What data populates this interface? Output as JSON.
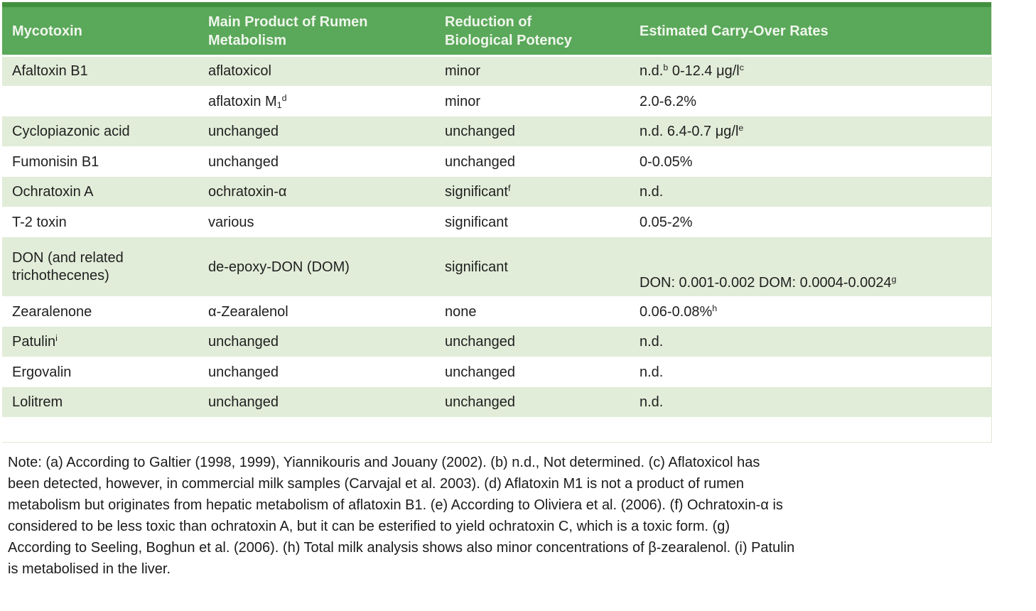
{
  "colors": {
    "header_bg": "#5aa85a",
    "header_top_border": "#41903f",
    "row_green": "#e2edd9",
    "header_text": "#eff6ec",
    "body_text": "#1f1f1f"
  },
  "table": {
    "columns": [
      {
        "label": "Mycotoxin"
      },
      {
        "label": "Main Product of Rumen\nMetabolism"
      },
      {
        "label": "Reduction of\nBiological Potency"
      },
      {
        "label": "Estimated Carry-Over Rates"
      }
    ],
    "rows": [
      {
        "shade": "green",
        "cells": [
          "Afaltoxin B1",
          "aflatoxicol",
          "minor",
          "n.d.^{b} 0-12.4 μg/l^{c}"
        ]
      },
      {
        "shade": "white",
        "cells": [
          "",
          "aflatoxin M_{1}^{d}",
          "minor",
          "2.0-6.2%"
        ]
      },
      {
        "shade": "green",
        "cells": [
          "Cyclopiazonic acid",
          "unchanged",
          "unchanged",
          "n.d. 6.4-0.7 μg/l^{e}"
        ]
      },
      {
        "shade": "white",
        "cells": [
          "Fumonisin B1",
          "unchanged",
          "unchanged",
          "0-0.05%"
        ]
      },
      {
        "shade": "green",
        "cells": [
          "Ochratoxin A",
          "ochratoxin-α",
          "significant^{f}",
          "n.d."
        ]
      },
      {
        "shade": "white",
        "cells": [
          "T-2 toxin",
          "various",
          "significant",
          "0.05-2%"
        ]
      },
      {
        "shade": "green",
        "tall": true,
        "cells": [
          "DON (and related trichothecenes)",
          "de-epoxy-DON (DOM)",
          "significant",
          "DON: 0.001-0.002 DOM: 0.0004-0.0024^{g}"
        ]
      },
      {
        "shade": "white",
        "cells": [
          "Zearalenone",
          "α-Zearalenol",
          "none",
          "0.06-0.08%^{h}"
        ]
      },
      {
        "shade": "green",
        "cells": [
          "Patulin^{i}",
          "unchanged",
          "unchanged",
          "n.d."
        ]
      },
      {
        "shade": "white",
        "cells": [
          "Ergovalin",
          "unchanged",
          "unchanged",
          "n.d."
        ]
      },
      {
        "shade": "green",
        "cells": [
          "Lolitrem",
          "unchanged",
          "unchanged",
          "n.d."
        ]
      },
      {
        "shade": "white",
        "empty": true,
        "cells": [
          "",
          "",
          "",
          ""
        ]
      }
    ]
  },
  "note_lines": [
    "Note: (a) According to Galtier (1998, 1999), Yiannikouris and Jouany (2002). (b) n.d., Not determined. (c) Aflatoxicol has",
    "been detected, however, in commercial milk samples (Carvajal et al. 2003). (d) Aflatoxin M1 is not a product of rumen",
    "metabolism but originates from hepatic metabolism of aflatoxin B1. (e) According to Oliviera et al. (2006). (f) Ochratoxin-α is",
    "considered to be less toxic than ochratoxin A, but it can be esterified to yield ochratoxin C, which is a toxic form. (g)",
    "According to Seeling, Boghun et al. (2006). (h) Total milk analysis shows also minor concentrations of β-zearalenol. (i) Patulin",
    "is metabolised in the liver."
  ]
}
